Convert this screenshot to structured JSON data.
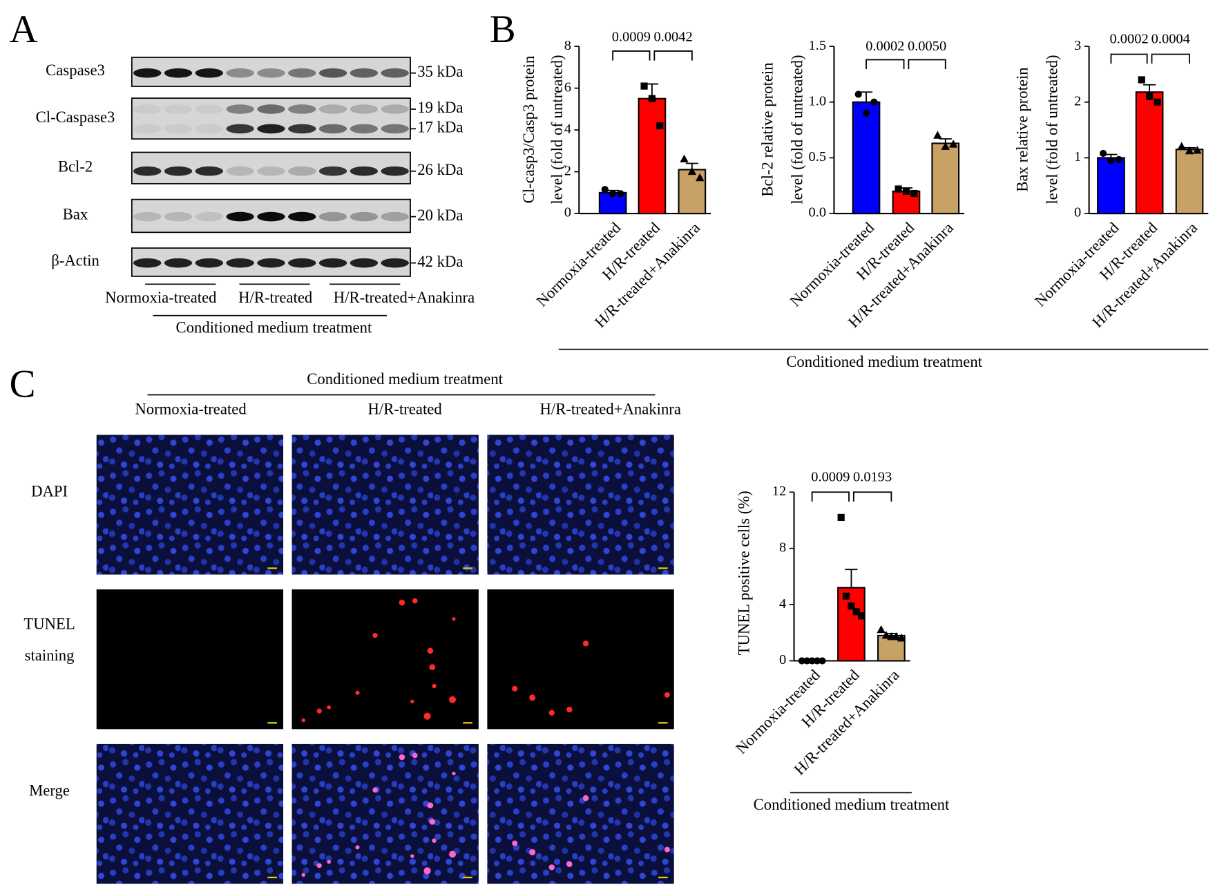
{
  "panel_labels": [
    "A",
    "B",
    "C"
  ],
  "blot": {
    "rows": [
      {
        "label": "Caspase3",
        "sizes": [
          "35 kDa"
        ]
      },
      {
        "label": "Cl-Caspase3",
        "sizes": [
          "19 kDa",
          "17 kDa"
        ]
      },
      {
        "label": "Bcl-2",
        "sizes": [
          "26 kDa"
        ]
      },
      {
        "label": "Bax",
        "sizes": [
          "20 kDa"
        ]
      },
      {
        "label": "β-Actin",
        "sizes": [
          "42 kDa"
        ]
      }
    ],
    "groups": [
      "Normoxia-treated",
      "H/R-treated",
      "H/R-treated+Anakinra"
    ],
    "treatment": "Conditioned medium treatment"
  },
  "panel_b": {
    "xlabel": "Conditioned medium treatment"
  },
  "chart_data": [
    {
      "type": "bar",
      "ylabel": [
        "Cl-casp3/Casp3 protein",
        "level (fold of untreated)"
      ],
      "categories": [
        "Normoxia-treated",
        "H/R-treated",
        "H/R-treated+Anakinra"
      ],
      "colors": [
        "#0000ff",
        "#ff0000",
        "#c8a165"
      ],
      "markers": [
        "circle",
        "square",
        "triangle"
      ],
      "values": [
        1.0,
        5.5,
        2.1
      ],
      "errors": [
        0.1,
        0.7,
        0.3
      ],
      "points": [
        [
          1.15,
          0.95,
          0.95
        ],
        [
          6.1,
          5.5,
          4.2
        ],
        [
          2.6,
          2.0,
          1.7
        ]
      ],
      "ylim": [
        0,
        8
      ],
      "yticks": [
        0,
        2,
        4,
        6,
        8
      ],
      "pvalues": [
        "0.0009",
        "0.0042"
      ]
    },
    {
      "type": "bar",
      "ylabel": [
        "Bcl-2 relative protein",
        "level (fold of untreated)"
      ],
      "categories": [
        "Normoxia-treated",
        "H/R-treated",
        "H/R-treated+Anakinra"
      ],
      "colors": [
        "#0000ff",
        "#ff0000",
        "#c8a165"
      ],
      "markers": [
        "circle",
        "square",
        "triangle"
      ],
      "values": [
        1.0,
        0.2,
        0.63
      ],
      "errors": [
        0.09,
        0.03,
        0.04
      ],
      "points": [
        [
          1.07,
          0.9,
          1.0
        ],
        [
          0.22,
          0.2,
          0.18
        ],
        [
          0.7,
          0.6,
          0.62
        ]
      ],
      "ylim": [
        0,
        1.5
      ],
      "yticks": [
        {
          "value": 0,
          "label": "0.0"
        },
        0.5,
        {
          "value": 1,
          "label": "1.0"
        },
        1.5
      ],
      "pvalues": [
        "0.0002",
        "0.0050"
      ]
    },
    {
      "type": "bar",
      "ylabel": [
        "Bax relative protein",
        "level (fold of untreated)"
      ],
      "categories": [
        "Normoxia-treated",
        "H/R-treated",
        "H/R-treated+Anakinra"
      ],
      "colors": [
        "#0000ff",
        "#ff0000",
        "#c8a165"
      ],
      "markers": [
        "circle",
        "square",
        "triangle"
      ],
      "values": [
        1.0,
        2.18,
        1.15
      ],
      "errors": [
        0.06,
        0.13,
        0.03
      ],
      "points": [
        [
          1.08,
          0.95,
          0.97
        ],
        [
          2.4,
          2.1,
          2.0
        ],
        [
          1.2,
          1.12,
          1.13
        ]
      ],
      "ylim": [
        0,
        3
      ],
      "yticks": [
        0,
        1,
        2,
        3
      ],
      "pvalues": [
        "0.0002",
        "0.0004"
      ]
    },
    {
      "type": "bar",
      "ylabel": [
        "TUNEL positive cells (%)"
      ],
      "categories": [
        "Normoxia-treated",
        "H/R-treated",
        "H/R-treated+Anakinra"
      ],
      "colors": [
        "#0000ff",
        "#ff0000",
        "#c8a165"
      ],
      "markers": [
        "circle",
        "square",
        "triangle"
      ],
      "values": [
        0,
        5.2,
        1.8
      ],
      "errors": [
        0,
        1.3,
        0.15
      ],
      "points": [
        [
          0,
          0,
          0,
          0,
          0
        ],
        [
          10.2,
          4.6,
          3.9,
          3.5,
          3.2
        ],
        [
          2.2,
          1.8,
          1.7,
          1.7,
          1.6
        ]
      ],
      "ylim": [
        0,
        12
      ],
      "yticks": [
        0,
        4,
        8,
        12
      ],
      "pvalues": [
        "0.0009",
        "0.0193"
      ],
      "xlabel": "Conditioned medium treatment"
    }
  ],
  "microscopy": {
    "treatment": "Conditioned medium treatment",
    "columns": [
      "Normoxia-treated",
      "H/R-treated",
      "H/R-treated+Anakinra"
    ],
    "rows": [
      [
        "DAPI"
      ],
      [
        "TUNEL",
        "staining"
      ],
      [
        "Merge"
      ]
    ]
  }
}
